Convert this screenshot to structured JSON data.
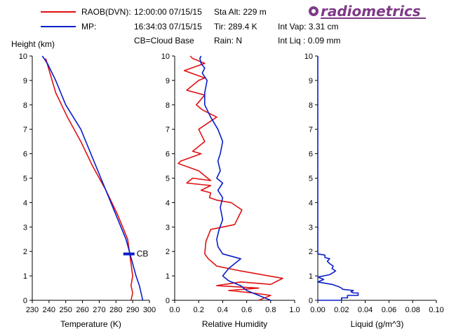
{
  "header": {
    "raob_label": "RAOB(DVN):",
    "raob_time": "12:00:00 07/15/15",
    "mp_label": "MP:",
    "mp_time": "16:34:03 07/15/15",
    "cb_note": "CB=Cloud Base",
    "sta_alt": "Sta Alt:  229 m",
    "tir": "Tir:  289.4 K",
    "rain": "Rain: N",
    "int_vap": "Int Vap:  3.31 cm",
    "int_liq": "Int Liq :  0.09 mm",
    "logo_text": "radiometrics",
    "raob_color": "#e01010",
    "mp_color": "#0a1ec8"
  },
  "chart_data": [
    {
      "type": "line",
      "title": "",
      "xlabel": "Temperature (K)",
      "ylabel": "Height (km)",
      "xlim": [
        230,
        300
      ],
      "ylim": [
        0,
        10
      ],
      "xticks": [
        "230",
        "240",
        "250",
        "260",
        "270",
        "280",
        "290",
        "300"
      ],
      "yticks": [
        "0",
        "1",
        "2",
        "3",
        "4",
        "5",
        "6",
        "7",
        "8",
        "9",
        "10"
      ],
      "annotation": "CB",
      "cloud_base_km": 1.9,
      "series": [
        {
          "name": "RAOB(DVN):",
          "color": "#e01010",
          "x": [
            289,
            290,
            289,
            290,
            289,
            288,
            287,
            281,
            274,
            266,
            259,
            251,
            244,
            238
          ],
          "y": [
            0,
            0.3,
            0.6,
            1.0,
            1.5,
            2.0,
            2.5,
            3.5,
            4.5,
            5.5,
            6.5,
            7.5,
            8.5,
            9.9
          ]
        },
        {
          "name": "MP:",
          "color": "#0a1ec8",
          "x": [
            296,
            295,
            294,
            292,
            290,
            288,
            286,
            283,
            277,
            271,
            265,
            259,
            250,
            244,
            239,
            236
          ],
          "y": [
            0,
            0.3,
            0.6,
            1.0,
            1.5,
            2.0,
            2.5,
            3.0,
            4.0,
            5.0,
            6.0,
            7.0,
            8.0,
            9.0,
            9.7,
            10
          ]
        }
      ]
    },
    {
      "type": "line",
      "title": "",
      "xlabel": "Relative Humidity",
      "ylabel": "",
      "xlim": [
        0,
        1.0
      ],
      "ylim": [
        0,
        10
      ],
      "xticks": [
        "0.0",
        "0.2",
        "0.4",
        "0.6",
        "0.8",
        "1.0"
      ],
      "yticks": [
        "0",
        "1",
        "2",
        "3",
        "4",
        "5",
        "6",
        "7",
        "8",
        "9",
        "10"
      ],
      "series": [
        {
          "name": "RAOB(DVN):",
          "color": "#e01010",
          "x": [
            0.7,
            0.8,
            0.65,
            0.45,
            0.7,
            0.35,
            0.55,
            0.8,
            0.9,
            0.55,
            0.35,
            0.28,
            0.25,
            0.26,
            0.3,
            0.5,
            0.56,
            0.47,
            0.35,
            0.29,
            0.3,
            0.22,
            0.3,
            0.1,
            0.15,
            0.3,
            0.2,
            0.03,
            0.05,
            0.22,
            0.15,
            0.25,
            0.2,
            0.35,
            0.23,
            0.18,
            0.25,
            0.1,
            0.2,
            0.25,
            0.08,
            0.25,
            0.15,
            0.13
          ],
          "y": [
            0,
            0.2,
            0.3,
            0.4,
            0.5,
            0.6,
            0.75,
            0.65,
            0.9,
            1.2,
            1.4,
            1.7,
            1.9,
            2.4,
            2.9,
            3.1,
            3.7,
            4.0,
            4.1,
            4.2,
            4.4,
            4.5,
            4.7,
            4.8,
            5.0,
            4.9,
            5.3,
            5.6,
            5.7,
            6.0,
            6.1,
            6.5,
            7.0,
            7.5,
            7.8,
            8.0,
            8.4,
            8.6,
            9.0,
            9.1,
            9.4,
            9.7,
            9.9,
            10
          ]
        },
        {
          "name": "MP:",
          "color": "#0a1ec8",
          "x": [
            0.8,
            0.7,
            0.6,
            0.55,
            0.45,
            0.4,
            0.45,
            0.5,
            0.55,
            0.4,
            0.36,
            0.35,
            0.37,
            0.4,
            0.38,
            0.4,
            0.36,
            0.4,
            0.35,
            0.38,
            0.36,
            0.38,
            0.4,
            0.36,
            0.3,
            0.25,
            0.25,
            0.27,
            0.23,
            0.25,
            0.22,
            0.21,
            0.22
          ],
          "y": [
            0,
            0.2,
            0.4,
            0.6,
            0.8,
            1.0,
            1.3,
            1.5,
            1.7,
            1.9,
            2.2,
            2.5,
            2.9,
            3.3,
            3.8,
            4.2,
            4.5,
            4.8,
            5.0,
            5.3,
            5.7,
            6.0,
            6.5,
            7.0,
            7.5,
            8.0,
            8.5,
            9.0,
            9.3,
            9.5,
            9.7,
            9.9,
            10
          ]
        }
      ]
    },
    {
      "type": "line",
      "title": "",
      "xlabel": "Liquid (g/m^3)",
      "ylabel": "",
      "xlim": [
        0,
        0.1
      ],
      "ylim": [
        0,
        10
      ],
      "xticks": [
        "0.00",
        "0.02",
        "0.04",
        "0.06",
        "0.08",
        "0.10"
      ],
      "yticks": [
        "0",
        "1",
        "2",
        "3",
        "4",
        "5",
        "6",
        "7",
        "8",
        "9",
        "10"
      ],
      "series": [
        {
          "name": "MP:",
          "color": "#0a1ec8",
          "x": [
            0.0,
            0.02,
            0.02,
            0.025,
            0.025,
            0.034,
            0.034,
            0.03,
            0.028,
            0.03,
            0.021,
            0.02,
            0.018,
            0.012,
            0.0,
            0.005,
            0.0,
            0.01,
            0.015,
            0.012,
            0.013,
            0.01,
            0.008,
            0.01,
            0.006,
            0.006,
            0.0,
            0.0
          ],
          "y": [
            0,
            0.0,
            0.1,
            0.1,
            0.2,
            0.2,
            0.3,
            0.3,
            0.35,
            0.4,
            0.45,
            0.5,
            0.55,
            0.65,
            0.75,
            0.85,
            0.95,
            1.05,
            1.2,
            1.3,
            1.4,
            1.5,
            1.6,
            1.7,
            1.75,
            1.85,
            1.9,
            10
          ]
        }
      ]
    }
  ]
}
